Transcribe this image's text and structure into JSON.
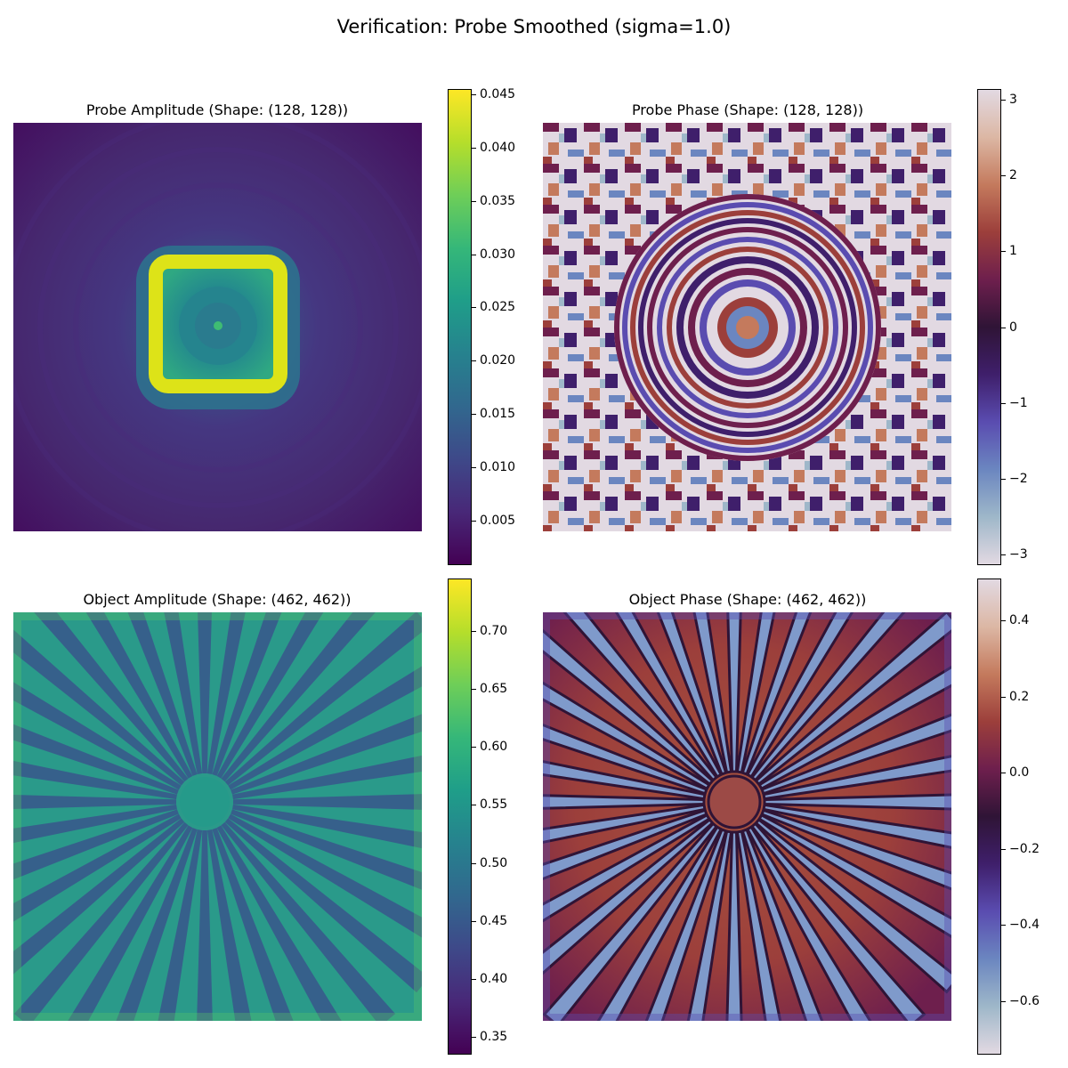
{
  "suptitle": "Verification: Probe Smoothed (sigma=1.0)",
  "colors": {
    "viridis": [
      "#440154",
      "#482878",
      "#3e4989",
      "#31688e",
      "#26828e",
      "#1f9e89",
      "#35b779",
      "#6ece58",
      "#b5de2b",
      "#fde725"
    ],
    "twilight_shifted": [
      "#e2d9e2",
      "#9eb7c9",
      "#6b86c0",
      "#5a4cb0",
      "#3f1f6b",
      "#2f1436",
      "#6e1f4d",
      "#9c3f3b",
      "#c47a5d",
      "#dcb7a4",
      "#e2d9e2"
    ]
  },
  "chart_data": [
    {
      "type": "heatmap",
      "title": "Probe Amplitude (Shape: (128, 128))",
      "colormap": "viridis",
      "colorbar": {
        "min": 0.0008,
        "max": 0.0455,
        "ticks": [
          "0.005",
          "0.010",
          "0.015",
          "0.020",
          "0.025",
          "0.030",
          "0.035",
          "0.040",
          "0.045"
        ],
        "tick_values": [
          0.005,
          0.01,
          0.015,
          0.02,
          0.025,
          0.03,
          0.035,
          0.04,
          0.045
        ]
      },
      "pattern": "bright square ring centered, dim periodic background"
    },
    {
      "type": "heatmap",
      "title": "Probe Phase (Shape: (128, 128))",
      "colormap": "twilight_shifted",
      "colorbar": {
        "min": -3.1416,
        "max": 3.1416,
        "ticks": [
          "−3",
          "−2",
          "−1",
          "0",
          "1",
          "2",
          "3"
        ],
        "tick_values": [
          -3,
          -2,
          -1,
          0,
          1,
          2,
          3
        ]
      },
      "pattern": "concentric rings with wrapped phase"
    },
    {
      "type": "heatmap",
      "title": "Object Amplitude (Shape: (462, 462))",
      "colormap": "viridis",
      "colorbar": {
        "min": 0.335,
        "max": 0.745,
        "ticks": [
          "0.35",
          "0.40",
          "0.45",
          "0.50",
          "0.55",
          "0.60",
          "0.65",
          "0.70"
        ],
        "tick_values": [
          0.35,
          0.4,
          0.45,
          0.5,
          0.55,
          0.6,
          0.65,
          0.7
        ]
      },
      "pattern": "Siemens star, 36 spokes"
    },
    {
      "type": "heatmap",
      "title": "Object Phase (Shape: (462, 462))",
      "colormap": "twilight_shifted",
      "colorbar": {
        "min": -0.74,
        "max": 0.51,
        "ticks": [
          "−0.6",
          "−0.4",
          "−0.2",
          "0.0",
          "0.2",
          "0.4"
        ],
        "tick_values": [
          -0.6,
          -0.4,
          -0.2,
          0.0,
          0.2,
          0.4
        ]
      },
      "pattern": "Siemens star, 36 spokes"
    }
  ]
}
